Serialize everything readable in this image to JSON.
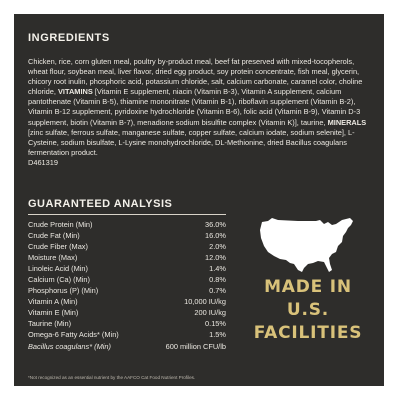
{
  "ingredients": {
    "title": "INGREDIENTS",
    "text_main": "Chicken, rice, corn gluten meal, poultry by-product meal, beef fat preserved with mixed-tocopherols, wheat flour, soybean meal, liver flavor, dried egg product, soy protein concentrate, fish meal, glycerin, chicory root inulin, phosphoric acid, potassium chloride, salt, calcium carbonate, caramel color, choline chloride, ",
    "vitamins_label": "VITAMINS",
    "text_vitamins": " [Vitamin E supplement, niacin (Vitamin B-3), Vitamin A supplement, calcium pantothenate (Vitamin B-5), thiamine mononitrate (Vitamin B-1), riboflavin supplement (Vitamin B-2), Vitamin B-12 supplement, pyridoxine hydrochloride (Vitamin B-6), folic acid (Vitamin B-9), Vitamin D-3 supplement, biotin (Vitamin B-7), menadione sodium bisulfite complex (Vitamin K)], taurine, ",
    "minerals_label": "MINERALS",
    "text_minerals": " [zinc sulfate, ferrous sulfate, manganese sulfate, copper sulfate, calcium iodate, sodium selenite], L-Cysteine, sodium bisulfate, L-Lysine monohydrochloride, DL-Methionine, dried Bacillus coagulans fermentation product.",
    "code": "D461319"
  },
  "analysis": {
    "title": "GUARANTEED ANALYSIS",
    "rows": [
      {
        "name": "Crude Protein (Min)",
        "value": "36.0%"
      },
      {
        "name": "Crude Fat (Min)",
        "value": "16.0%"
      },
      {
        "name": "Crude Fiber (Max)",
        "value": "2.0%"
      },
      {
        "name": "Moisture (Max)",
        "value": "12.0%"
      },
      {
        "name": "Linoleic Acid (Min)",
        "value": "1.4%"
      },
      {
        "name": "Calcium (Ca) (Min)",
        "value": "0.8%"
      },
      {
        "name": "Phosphorus (P) (Min)",
        "value": "0.7%"
      },
      {
        "name": "Vitamin A (Min)",
        "value": "10,000 IU/kg"
      },
      {
        "name": "Vitamin E (Min)",
        "value": "200 IU/kg"
      },
      {
        "name": "Taurine (Min)",
        "value": "0.15%"
      },
      {
        "name": "Omega-6 Fatty Acids* (Min)",
        "value": "1.5%"
      },
      {
        "name": "Bacillus coagulans* (Min)",
        "value": "600 million CFU/lb",
        "italic": true
      }
    ]
  },
  "badge": {
    "map_icon": "usa-map-icon",
    "line1": "MADE IN",
    "line2": "U.S.",
    "line3": "FACILITIES"
  },
  "footnote": "*Not recognized as an essential nutrient by the AAFCO Cat Food Nutrient Profiles.",
  "colors": {
    "background": "#2e2d2b",
    "text": "#ece9e2",
    "badge_gold": "#d9c27a"
  }
}
